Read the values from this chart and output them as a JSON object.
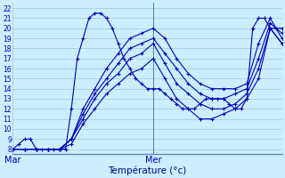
{
  "xlabel": "Température (°c)",
  "background_color": "#cceeff",
  "grid_color": "#99ccdd",
  "line_color": "#0000bb",
  "ylim": [
    7.5,
    22.5
  ],
  "xlim": [
    0,
    46
  ],
  "yticks": [
    8,
    9,
    10,
    11,
    12,
    13,
    14,
    15,
    16,
    17,
    18,
    19,
    20,
    21,
    22
  ],
  "mar_x": 0,
  "mer_x": 24,
  "lines": [
    {
      "x": [
        0,
        1,
        2,
        3,
        4,
        5,
        6,
        7,
        8,
        9,
        10,
        11,
        12,
        13,
        14,
        15,
        16,
        17,
        18,
        19,
        20,
        21,
        22,
        23,
        24,
        25,
        26,
        27,
        28,
        29,
        30,
        31,
        32,
        33,
        34,
        35,
        36,
        37,
        38,
        39,
        40,
        41,
        42,
        43,
        44,
        45,
        46
      ],
      "y": [
        8,
        8.5,
        9,
        9,
        8,
        8,
        8,
        8,
        8,
        8,
        12,
        17,
        19,
        21,
        21.5,
        21.5,
        21,
        20,
        18.5,
        17,
        16,
        15,
        14.5,
        14,
        14,
        14,
        13.5,
        13,
        12.5,
        12,
        12,
        12,
        12.5,
        13,
        13,
        13,
        13,
        12.5,
        12,
        12,
        13,
        20,
        21,
        21,
        20,
        20,
        20
      ]
    },
    {
      "x": [
        0,
        2,
        4,
        6,
        8,
        10,
        12,
        14,
        16,
        18,
        20,
        22,
        24,
        26,
        28,
        30,
        32,
        34,
        36,
        38,
        40,
        42,
        44,
        46
      ],
      "y": [
        8,
        8,
        8,
        8,
        8,
        9,
        12,
        14,
        16,
        17.5,
        19,
        19.5,
        20,
        19,
        17,
        15.5,
        14.5,
        14,
        14,
        14,
        14.5,
        18.5,
        21,
        19
      ]
    },
    {
      "x": [
        0,
        2,
        4,
        6,
        8,
        10,
        12,
        14,
        16,
        18,
        20,
        22,
        24,
        26,
        28,
        30,
        32,
        34,
        36,
        38,
        40,
        42,
        44,
        46
      ],
      "y": [
        8,
        8,
        8,
        8,
        8,
        9,
        11.5,
        13.5,
        15,
        16.5,
        18,
        18.5,
        19,
        17.5,
        16,
        14.5,
        13.5,
        13,
        13,
        13.5,
        14,
        17,
        20.5,
        19.5
      ]
    },
    {
      "x": [
        0,
        2,
        4,
        6,
        8,
        10,
        12,
        14,
        16,
        18,
        20,
        22,
        24,
        26,
        28,
        30,
        32,
        34,
        36,
        38,
        40,
        42,
        44,
        46
      ],
      "y": [
        8,
        8,
        8,
        8,
        8,
        9,
        11,
        13,
        14.5,
        15.5,
        17,
        17.5,
        18.5,
        16.5,
        14.5,
        13.5,
        12.5,
        12,
        12,
        12.5,
        13.5,
        16,
        20,
        18.5
      ]
    },
    {
      "x": [
        0,
        2,
        4,
        6,
        8,
        10,
        12,
        14,
        16,
        18,
        20,
        22,
        24,
        26,
        28,
        30,
        32,
        34,
        36,
        38,
        40,
        42,
        44,
        46
      ],
      "y": [
        8,
        8,
        8,
        8,
        8,
        8.5,
        10.5,
        12,
        13.5,
        14.5,
        15.5,
        16,
        17,
        15,
        13,
        12,
        11,
        11,
        11.5,
        12,
        13,
        15,
        20,
        18.5
      ]
    }
  ]
}
